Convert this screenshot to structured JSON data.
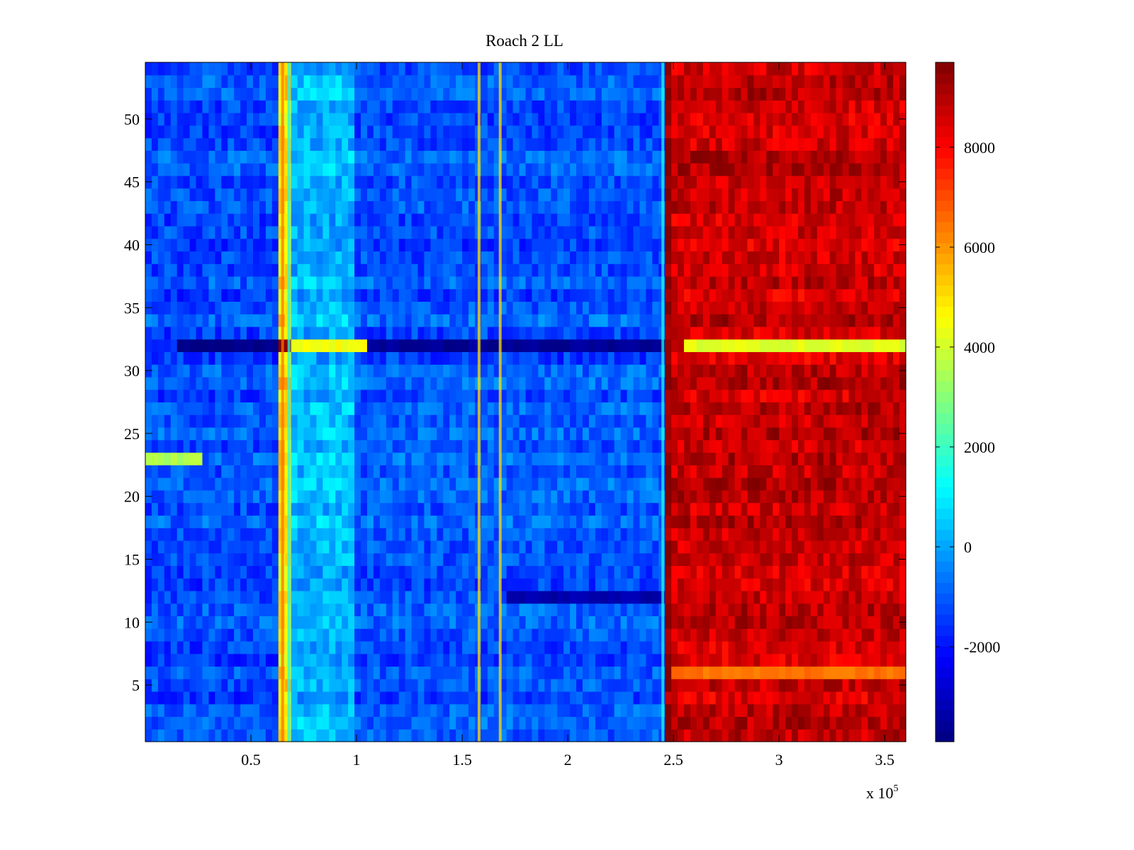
{
  "chart_data": {
    "type": "heatmap",
    "title": "Roach 2 LL",
    "xlabel": "",
    "ylabel": "",
    "x_multiplier_label": "x 10",
    "x_multiplier_exponent": "5",
    "colormap": "jet",
    "xlim": [
      0,
      360000
    ],
    "ylim": [
      0.5,
      54.5
    ],
    "clim": [
      -3900,
      9700
    ],
    "x_ticks": [
      {
        "value": 50000,
        "label": "0.5"
      },
      {
        "value": 100000,
        "label": "1"
      },
      {
        "value": 150000,
        "label": "1.5"
      },
      {
        "value": 200000,
        "label": "2"
      },
      {
        "value": 250000,
        "label": "2.5"
      },
      {
        "value": 300000,
        "label": "3"
      },
      {
        "value": 350000,
        "label": "3.5"
      }
    ],
    "y_ticks": [
      {
        "value": 5,
        "label": "5"
      },
      {
        "value": 10,
        "label": "10"
      },
      {
        "value": 15,
        "label": "15"
      },
      {
        "value": 20,
        "label": "20"
      },
      {
        "value": 25,
        "label": "25"
      },
      {
        "value": 30,
        "label": "30"
      },
      {
        "value": 35,
        "label": "35"
      },
      {
        "value": 40,
        "label": "40"
      },
      {
        "value": 45,
        "label": "45"
      },
      {
        "value": 50,
        "label": "50"
      }
    ],
    "colorbar_ticks": [
      {
        "value": -2000,
        "label": "-2000"
      },
      {
        "value": 0,
        "label": "0"
      },
      {
        "value": 2000,
        "label": "2000"
      },
      {
        "value": 4000,
        "label": "4000"
      },
      {
        "value": 6000,
        "label": "6000"
      },
      {
        "value": 8000,
        "label": "8000"
      }
    ],
    "rows": 54,
    "regions": [
      {
        "x_start": 0,
        "x_end": 62000,
        "value": -1200
      },
      {
        "x_start": 62000,
        "x_end": 70000,
        "value": 5000
      },
      {
        "x_start": 70000,
        "x_end": 100000,
        "value": 200
      },
      {
        "x_start": 100000,
        "x_end": 245000,
        "value": -1100
      },
      {
        "x_start": 245000,
        "x_end": 250000,
        "value": 9500
      },
      {
        "x_start": 250000,
        "x_end": 360000,
        "value": 8700
      }
    ],
    "row_features": [
      {
        "row": 32,
        "x_start": 15000,
        "x_end": 62000,
        "value": -3800
      },
      {
        "row": 32,
        "x_start": 62000,
        "x_end": 70000,
        "value": 9700
      },
      {
        "row": 32,
        "x_start": 70000,
        "x_end": 105000,
        "value": 4500
      },
      {
        "row": 32,
        "x_start": 105000,
        "x_end": 245000,
        "value": -3600
      },
      {
        "row": 32,
        "x_start": 255000,
        "x_end": 360000,
        "value": 4200
      },
      {
        "row": 12,
        "x_start": 170000,
        "x_end": 245000,
        "value": -3300
      },
      {
        "row": 23,
        "x_start": 0,
        "x_end": 28000,
        "value": 3500
      },
      {
        "row": 6,
        "x_start": 250000,
        "x_end": 360000,
        "value": 6500
      }
    ],
    "vertical_features": [
      {
        "x": 65000,
        "value": 6500
      },
      {
        "x": 68000,
        "value": 1500
      },
      {
        "x": 245000,
        "value": 1500
      },
      {
        "x": 158000,
        "value": 5000
      },
      {
        "x": 168000,
        "value": 5000
      }
    ]
  }
}
